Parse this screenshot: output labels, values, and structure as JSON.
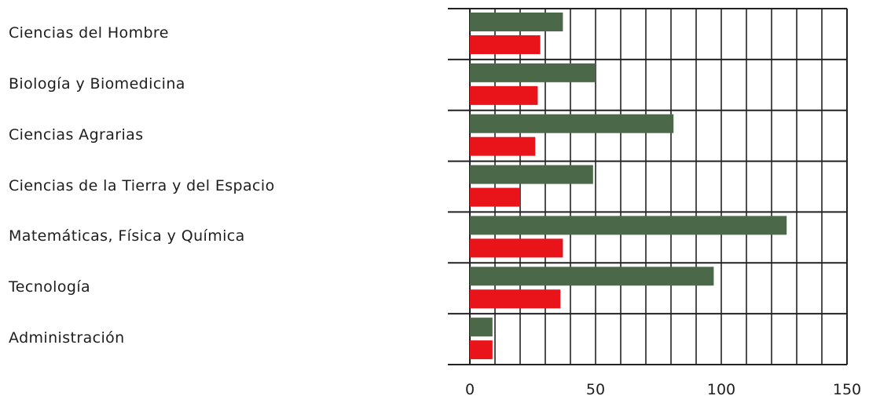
{
  "chart_data": {
    "type": "bar",
    "orientation": "horizontal",
    "categories": [
      "Ciencias del Hombre",
      "Biología y Biomedicina",
      "Ciencias Agrarias",
      "Ciencias de la Tierra y del Espacio",
      "Matemáticas, Física y Química",
      "Tecnología",
      "Administración"
    ],
    "series": [
      {
        "color": "#4b6848",
        "values": [
          37,
          50,
          81,
          49,
          126,
          97,
          9
        ]
      },
      {
        "color": "#e8141a",
        "values": [
          28,
          27,
          26,
          20,
          37,
          36,
          9
        ]
      }
    ],
    "xlim": [
      0,
      150
    ],
    "xticks": [
      0,
      50,
      100,
      150
    ],
    "xtick_labels": [
      "0",
      "50",
      "100",
      "150"
    ],
    "grid": true,
    "legend": "none"
  }
}
